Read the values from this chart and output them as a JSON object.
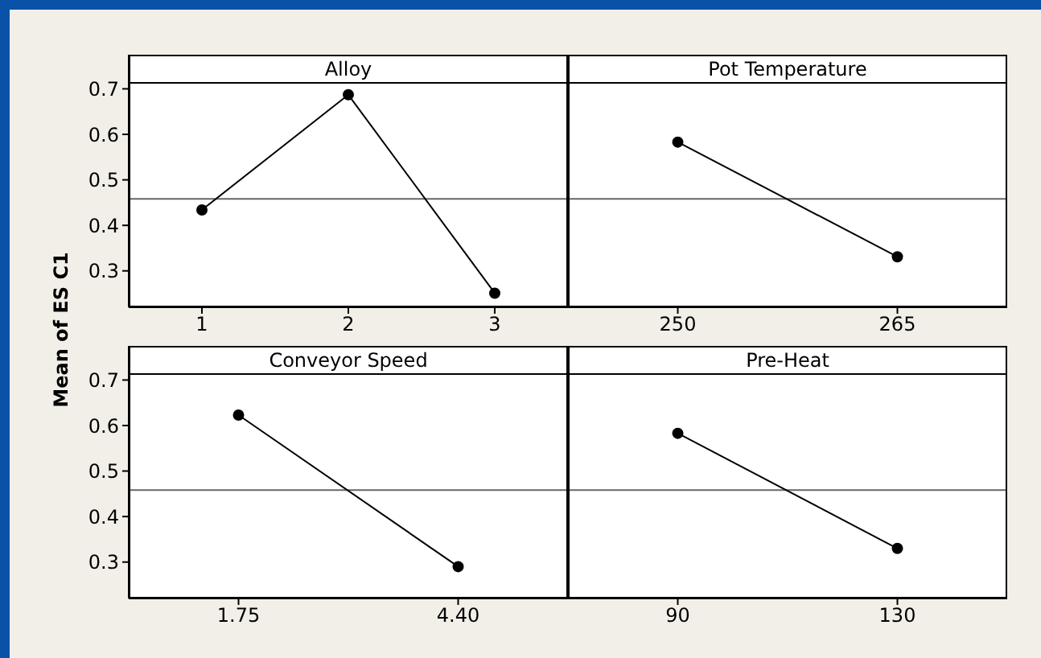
{
  "chart_data": [
    {
      "type": "line",
      "title": "Alloy",
      "ylabel": "Mean of ES C1",
      "categories": [
        "1",
        "2",
        "3"
      ],
      "values": [
        0.434,
        0.687,
        0.251
      ],
      "color": "#000000",
      "marker": "circle",
      "ylim": [
        0.22,
        0.775
      ],
      "yticks": [
        0.3,
        0.4,
        0.5,
        0.6,
        0.7
      ],
      "ref_lines": [
        {
          "axis": "y",
          "value": 0.458,
          "color": "#666666"
        }
      ]
    },
    {
      "type": "line",
      "title": "Pot Temperature",
      "categories": [
        "250",
        "265"
      ],
      "values": [
        0.583,
        0.331
      ],
      "color": "#000000",
      "marker": "circle",
      "ylim": [
        0.22,
        0.775
      ],
      "yticks": [
        0.3,
        0.4,
        0.5,
        0.6,
        0.7
      ],
      "tick_labels": "x",
      "ref_lines": [
        {
          "axis": "y",
          "value": 0.458,
          "color": "#666666"
        }
      ]
    },
    {
      "type": "line",
      "title": "Conveyor Speed",
      "categories": [
        "1.75",
        "4.40"
      ],
      "values": [
        0.623,
        0.29
      ],
      "color": "#000000",
      "marker": "circle",
      "ylim": [
        0.22,
        0.775
      ],
      "yticks": [
        0.3,
        0.4,
        0.5,
        0.6,
        0.7
      ],
      "ref_lines": [
        {
          "axis": "y",
          "value": 0.458,
          "color": "#666666"
        }
      ]
    },
    {
      "type": "line",
      "title": "Pre-Heat",
      "categories": [
        "90",
        "130"
      ],
      "values": [
        0.583,
        0.33
      ],
      "color": "#000000",
      "marker": "circle",
      "ylim": [
        0.22,
        0.775
      ],
      "yticks": [
        0.3,
        0.4,
        0.5,
        0.6,
        0.7
      ],
      "tick_labels": "x",
      "ref_lines": [
        {
          "axis": "y",
          "value": 0.458,
          "color": "#666666"
        }
      ]
    }
  ]
}
